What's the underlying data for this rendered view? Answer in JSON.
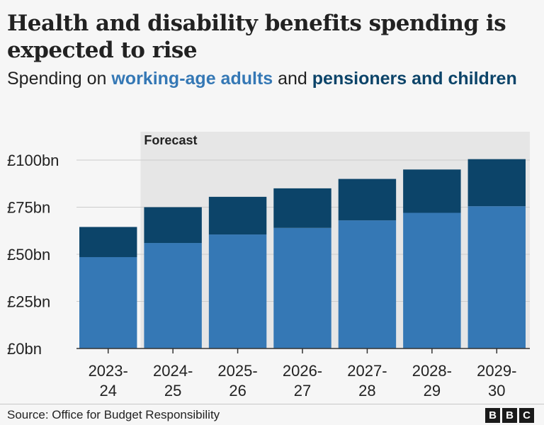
{
  "header": {
    "title": "Health and disability benefits spending is expected to rise",
    "subtitle_prefix": "Spending on ",
    "subtitle_series_1": "working-age adults",
    "subtitle_mid": " and ",
    "subtitle_series_2": "pensioners and children"
  },
  "footer": {
    "source": "Source: Office for Budget Responsibility",
    "logo_letters": [
      "B",
      "B",
      "C"
    ]
  },
  "colors": {
    "working_age": "#3578b5",
    "pensioners_children": "#0c4469",
    "forecast_shade": "#e6e6e6",
    "grid": "#cccccc",
    "axis": "#333333"
  },
  "chart_data": {
    "type": "bar",
    "stacked": true,
    "title": "Health and disability benefits spending is expected to rise",
    "subtitle": "Spending on working-age adults and pensioners and children",
    "categories": [
      [
        "2023-",
        "24"
      ],
      [
        "2024-",
        "25"
      ],
      [
        "2025-",
        "26"
      ],
      [
        "2026-",
        "27"
      ],
      [
        "2027-",
        "28"
      ],
      [
        "2028-",
        "29"
      ],
      [
        "2029-",
        "30"
      ]
    ],
    "series": [
      {
        "name": "working-age adults",
        "color": "#3578b5",
        "values": [
          48.5,
          56,
          60.5,
          64,
          68,
          72,
          75.5
        ]
      },
      {
        "name": "pensioners and children",
        "color": "#0c4469",
        "values": [
          16,
          19,
          20,
          21,
          22,
          23,
          25
        ]
      }
    ],
    "ylim": [
      0,
      100
    ],
    "yticks": [
      0,
      25,
      50,
      75,
      100
    ],
    "ytick_labels": [
      "£0bn",
      "£25bn",
      "£50bn",
      "£75bn",
      "£100bn"
    ],
    "grid": true,
    "annotation": {
      "label": "Forecast",
      "start_category_index": 1
    }
  }
}
